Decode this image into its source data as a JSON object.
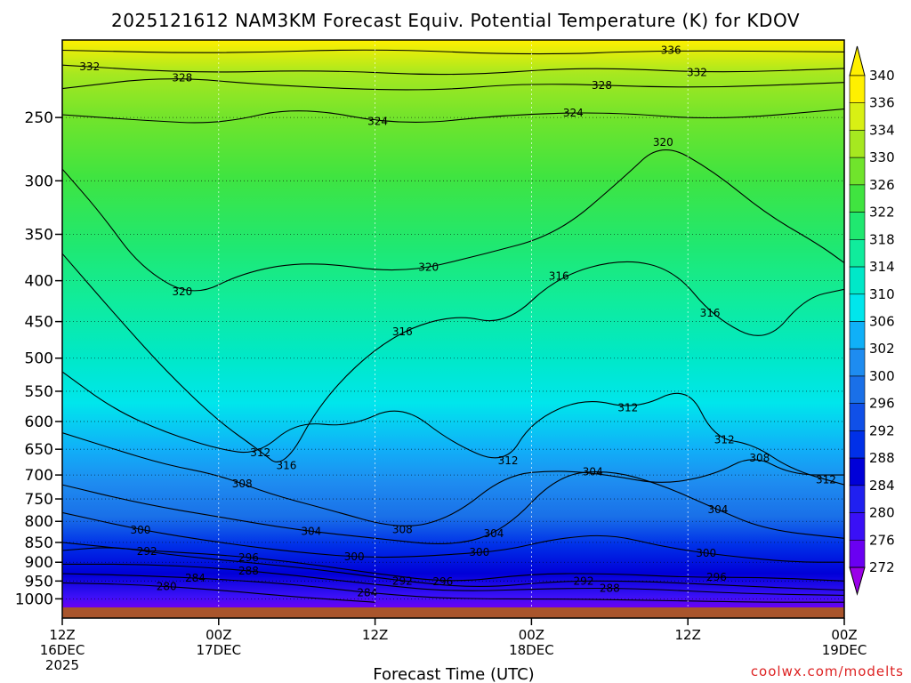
{
  "chart_data": {
    "type": "heatmap",
    "title": "2025121612 NAM3KM Forecast Equiv. Potential Temperature (K) for KDOV",
    "xlabel": "Forecast Time (UTC)",
    "ylabel": "",
    "x_ticks": [
      {
        "hour": 0,
        "line1": "12Z",
        "line2": "16DEC",
        "line3": "2025"
      },
      {
        "hour": 12,
        "line1": "00Z",
        "line2": "17DEC",
        "line3": ""
      },
      {
        "hour": 24,
        "line1": "12Z",
        "line2": "",
        "line3": ""
      },
      {
        "hour": 36,
        "line1": "00Z",
        "line2": "18DEC",
        "line3": ""
      },
      {
        "hour": 48,
        "line1": "12Z",
        "line2": "",
        "line3": ""
      },
      {
        "hour": 60,
        "line1": "00Z",
        "line2": "19DEC",
        "line3": ""
      }
    ],
    "xlim": [
      0,
      60
    ],
    "y_ticks": [
      250,
      300,
      350,
      400,
      450,
      500,
      550,
      600,
      650,
      700,
      750,
      800,
      850,
      900,
      950,
      1000
    ],
    "ylim": [
      1025,
      200
    ],
    "y_scale": "log-pressure",
    "grid": true,
    "colorbar": {
      "levels": [
        272,
        276,
        280,
        284,
        288,
        292,
        296,
        300,
        302,
        306,
        310,
        314,
        318,
        322,
        326,
        330,
        334,
        336,
        340
      ],
      "colors": [
        "#9a00e8",
        "#6a00f2",
        "#3a10f6",
        "#2020f0",
        "#0000d8",
        "#0030e8",
        "#1050e8",
        "#1a70e8",
        "#1e8cf0",
        "#10b0f8",
        "#00e6ec",
        "#00e8c8",
        "#10ec9c",
        "#20e870",
        "#40e440",
        "#70e42c",
        "#a6e820",
        "#d8f014",
        "#fff000"
      ]
    },
    "contours": [
      {
        "level": 332,
        "points": [
          [
            0,
            215
          ],
          [
            10,
            220
          ],
          [
            20,
            218
          ],
          [
            30,
            222
          ],
          [
            40,
            216
          ],
          [
            50,
            220
          ],
          [
            60,
            217
          ]
        ],
        "labels": [
          {
            "hour": 2.1,
            "value": 332
          },
          {
            "hour": 48.7,
            "value": 332
          }
        ]
      },
      {
        "level": 336,
        "points": [
          [
            0,
            206
          ],
          [
            12,
            208
          ],
          [
            24,
            205
          ],
          [
            36,
            209
          ],
          [
            46,
            206
          ],
          [
            60,
            207
          ]
        ],
        "labels": [
          {
            "hour": 46.7,
            "value": 336
          }
        ]
      },
      {
        "level": 328,
        "points": [
          [
            0,
            230
          ],
          [
            8,
            222
          ],
          [
            16,
            228
          ],
          [
            28,
            232
          ],
          [
            36,
            226
          ],
          [
            48,
            230
          ],
          [
            60,
            226
          ]
        ],
        "labels": [
          {
            "hour": 9.2,
            "value": 328
          },
          {
            "hour": 41.4,
            "value": 328
          }
        ]
      },
      {
        "level": 324,
        "points": [
          [
            0,
            248
          ],
          [
            6,
            252
          ],
          [
            12,
            255
          ],
          [
            18,
            242
          ],
          [
            26,
            256
          ],
          [
            34,
            248
          ],
          [
            42,
            246
          ],
          [
            50,
            252
          ],
          [
            60,
            244
          ]
        ],
        "labels": [
          {
            "hour": 24.2,
            "value": 324
          },
          {
            "hour": 39.2,
            "value": 324
          }
        ]
      },
      {
        "level": 320,
        "points": [
          [
            0,
            290
          ],
          [
            3,
            330
          ],
          [
            6,
            385
          ],
          [
            10,
            420
          ],
          [
            14,
            390
          ],
          [
            19,
            378
          ],
          [
            26,
            392
          ],
          [
            32,
            372
          ],
          [
            38,
            350
          ],
          [
            43,
            298
          ],
          [
            46,
            268
          ],
          [
            50,
            292
          ],
          [
            54,
            330
          ],
          [
            58,
            360
          ],
          [
            60,
            380
          ]
        ],
        "labels": [
          {
            "hour": 9.2,
            "value": 320
          },
          {
            "hour": 28.1,
            "value": 320
          },
          {
            "hour": 46.1,
            "value": 320
          }
        ]
      },
      {
        "level": 316,
        "points": [
          [
            0,
            370
          ],
          [
            4,
            440
          ],
          [
            8,
            520
          ],
          [
            12,
            600
          ],
          [
            15,
            650
          ],
          [
            17,
            690
          ],
          [
            20,
            560
          ],
          [
            25,
            470
          ],
          [
            30,
            440
          ],
          [
            34,
            455
          ],
          [
            38,
            395
          ],
          [
            43,
            375
          ],
          [
            47,
            388
          ],
          [
            50,
            445
          ],
          [
            54,
            480
          ],
          [
            57,
            420
          ],
          [
            60,
            410
          ]
        ],
        "labels": [
          {
            "hour": 17.2,
            "value": 316
          },
          {
            "hour": 26.1,
            "value": 316
          },
          {
            "hour": 38.1,
            "value": 316
          },
          {
            "hour": 49.7,
            "value": 316
          }
        ]
      },
      {
        "level": 312,
        "points": [
          [
            0,
            520
          ],
          [
            4,
            580
          ],
          [
            8,
            620
          ],
          [
            12,
            650
          ],
          [
            15,
            660
          ],
          [
            18,
            600
          ],
          [
            22,
            610
          ],
          [
            26,
            570
          ],
          [
            30,
            640
          ],
          [
            34,
            680
          ],
          [
            36,
            600
          ],
          [
            40,
            560
          ],
          [
            44,
            580
          ],
          [
            48,
            540
          ],
          [
            50,
            630
          ],
          [
            53,
            640
          ],
          [
            56,
            690
          ],
          [
            60,
            720
          ]
        ],
        "labels": [
          {
            "hour": 15.2,
            "value": 312
          },
          {
            "hour": 34.2,
            "value": 312
          },
          {
            "hour": 43.4,
            "value": 312
          },
          {
            "hour": 50.8,
            "value": 312
          },
          {
            "hour": 58.6,
            "value": 312
          }
        ]
      },
      {
        "level": 308,
        "points": [
          [
            0,
            620
          ],
          [
            4,
            650
          ],
          [
            8,
            680
          ],
          [
            12,
            700
          ],
          [
            16,
            740
          ],
          [
            20,
            770
          ],
          [
            26,
            820
          ],
          [
            30,
            790
          ],
          [
            34,
            700
          ],
          [
            38,
            690
          ],
          [
            42,
            700
          ],
          [
            46,
            720
          ],
          [
            50,
            700
          ],
          [
            53,
            660
          ],
          [
            56,
            700
          ],
          [
            60,
            700
          ]
        ],
        "labels": [
          {
            "hour": 13.8,
            "value": 308
          },
          {
            "hour": 26.1,
            "value": 308
          },
          {
            "hour": 53.5,
            "value": 308
          }
        ]
      },
      {
        "level": 304,
        "points": [
          [
            0,
            720
          ],
          [
            6,
            760
          ],
          [
            12,
            790
          ],
          [
            18,
            820
          ],
          [
            24,
            840
          ],
          [
            30,
            860
          ],
          [
            34,
            820
          ],
          [
            38,
            700
          ],
          [
            42,
            690
          ],
          [
            46,
            720
          ],
          [
            50,
            770
          ],
          [
            54,
            820
          ],
          [
            60,
            840
          ]
        ],
        "labels": [
          {
            "hour": 19.1,
            "value": 304
          },
          {
            "hour": 33.1,
            "value": 304
          },
          {
            "hour": 40.7,
            "value": 304
          },
          {
            "hour": 50.3,
            "value": 304
          }
        ]
      },
      {
        "level": 300,
        "points": [
          [
            0,
            780
          ],
          [
            6,
            820
          ],
          [
            12,
            850
          ],
          [
            18,
            875
          ],
          [
            24,
            890
          ],
          [
            30,
            880
          ],
          [
            34,
            870
          ],
          [
            38,
            840
          ],
          [
            42,
            830
          ],
          [
            46,
            860
          ],
          [
            50,
            880
          ],
          [
            56,
            900
          ],
          [
            60,
            900
          ]
        ],
        "labels": [
          {
            "hour": 6.0,
            "value": 300
          },
          {
            "hour": 22.4,
            "value": 300
          },
          {
            "hour": 32.0,
            "value": 300
          },
          {
            "hour": 49.4,
            "value": 300
          }
        ]
      },
      {
        "level": 296,
        "points": [
          [
            0,
            850
          ],
          [
            6,
            870
          ],
          [
            12,
            880
          ],
          [
            18,
            900
          ],
          [
            24,
            930
          ],
          [
            30,
            955
          ],
          [
            36,
            930
          ],
          [
            42,
            930
          ],
          [
            48,
            940
          ],
          [
            54,
            940
          ],
          [
            60,
            950
          ]
        ],
        "labels": [
          {
            "hour": 14.3,
            "value": 296
          },
          {
            "hour": 29.2,
            "value": 296
          },
          {
            "hour": 50.2,
            "value": 296
          }
        ]
      },
      {
        "level": 292,
        "points": [
          [
            0,
            870
          ],
          [
            4,
            860
          ],
          [
            8,
            880
          ],
          [
            14,
            900
          ],
          [
            20,
            920
          ],
          [
            26,
            950
          ],
          [
            32,
            970
          ],
          [
            38,
            950
          ],
          [
            44,
            950
          ],
          [
            50,
            960
          ],
          [
            56,
            970
          ],
          [
            60,
            975
          ]
        ],
        "labels": [
          {
            "hour": 6.5,
            "value": 292
          },
          {
            "hour": 26.1,
            "value": 292
          },
          {
            "hour": 40.0,
            "value": 292
          }
        ]
      },
      {
        "level": 288,
        "points": [
          [
            0,
            905
          ],
          [
            6,
            905
          ],
          [
            12,
            915
          ],
          [
            18,
            935
          ],
          [
            24,
            960
          ],
          [
            30,
            980
          ],
          [
            38,
            970
          ],
          [
            44,
            970
          ],
          [
            52,
            985
          ],
          [
            60,
            990
          ]
        ],
        "labels": [
          {
            "hour": 14.3,
            "value": 288
          },
          {
            "hour": 42.0,
            "value": 288
          }
        ]
      },
      {
        "level": 284,
        "points": [
          [
            0,
            930
          ],
          [
            6,
            935
          ],
          [
            12,
            945
          ],
          [
            18,
            960
          ],
          [
            24,
            985
          ],
          [
            30,
            1000
          ],
          [
            38,
            1000
          ],
          [
            46,
            1005
          ],
          [
            54,
            1010
          ],
          [
            60,
            1010
          ]
        ],
        "labels": [
          {
            "hour": 10.2,
            "value": 284
          },
          {
            "hour": 23.4,
            "value": 284
          }
        ]
      },
      {
        "level": 280,
        "points": [
          [
            0,
            955
          ],
          [
            6,
            960
          ],
          [
            12,
            975
          ],
          [
            18,
            995
          ],
          [
            24,
            1010
          ]
        ],
        "labels": [
          {
            "hour": 8.0,
            "value": 280
          }
        ]
      }
    ]
  },
  "credit": "coolwx.com/modelts"
}
